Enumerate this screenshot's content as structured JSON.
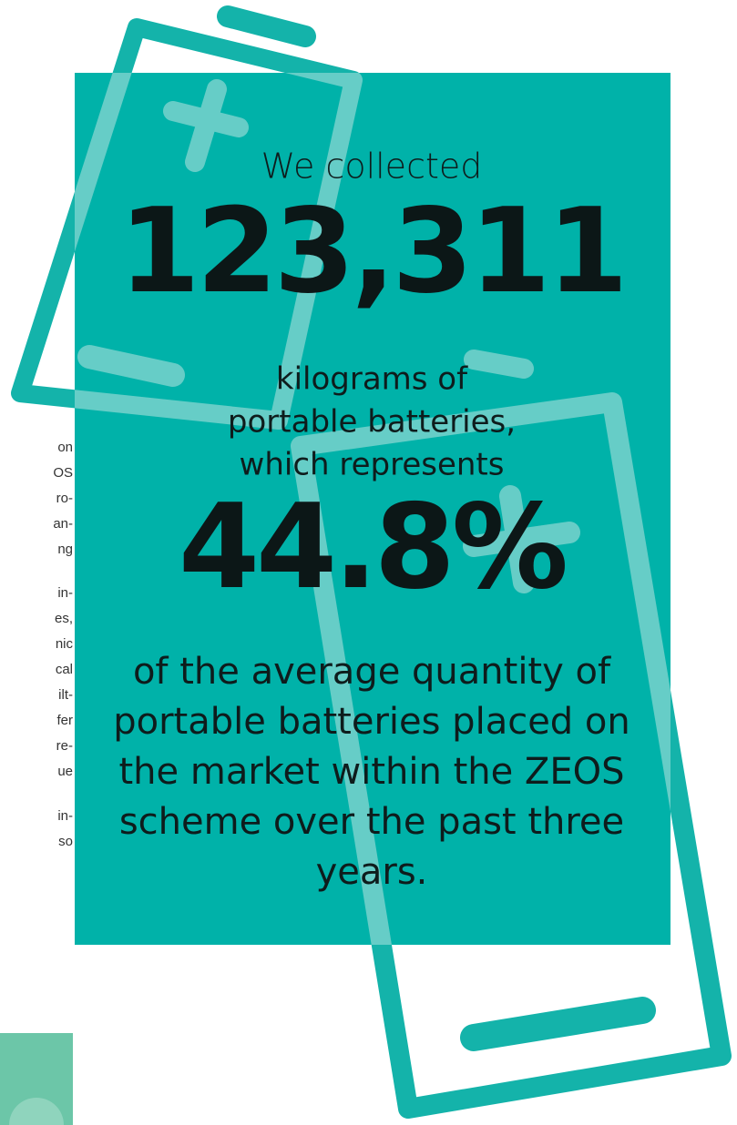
{
  "side_text": [
    "on",
    "OS",
    "ro-",
    "an-",
    "ng",
    "in-",
    "es,",
    "nic",
    "cal",
    "ilt-",
    "fer",
    "re-",
    "ue",
    "in-",
    "so"
  ],
  "panel": {
    "intro": "We collected",
    "amount": "123,311",
    "middle": [
      "kilograms of",
      "portable batteries,",
      "which represents"
    ],
    "share": "44.8%",
    "outro": [
      "of the average quantity of",
      "portable batteries placed on",
      "the market within the ZEOS",
      "scheme over the past three",
      "years."
    ]
  }
}
